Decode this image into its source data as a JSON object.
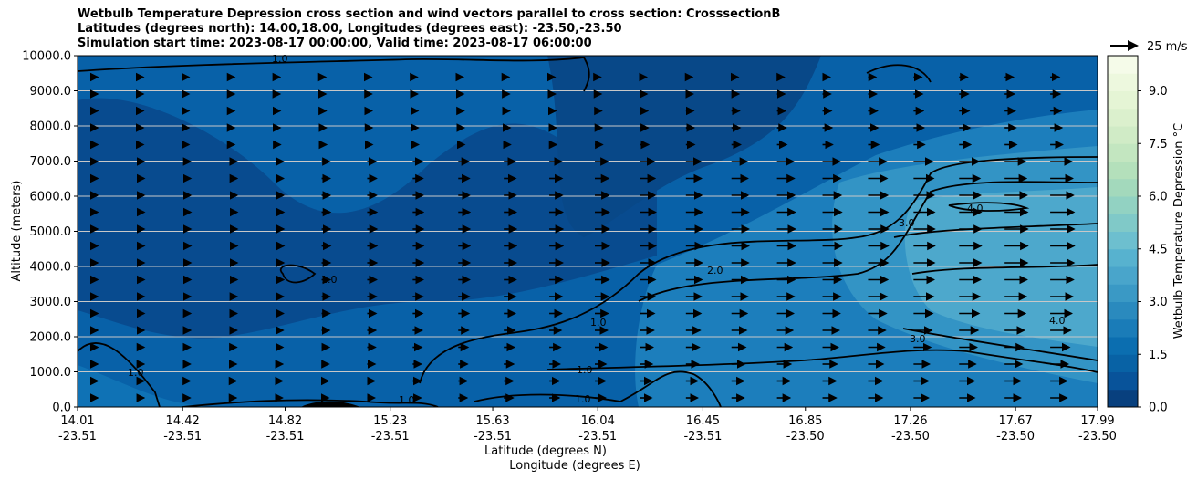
{
  "chart_data": {
    "type": "heatmap",
    "title_lines": [
      "Wetbulb Temperature Depression cross section and wind vectors parallel to cross section: CrosssectionB",
      "Latitudes (degrees north): 14.00,18.00, Longitudes (degrees east): -23.50,-23.50",
      "Simulation start time: 2023-08-17 00:00:00, Valid time: 2023-08-17 06:00:00"
    ],
    "xlabel_lines": [
      "Latitude (degrees N)",
      "Longitude (degrees E)"
    ],
    "ylabel": "Altitude (meters)",
    "x_ticks": [
      {
        "lat": "14.01",
        "lon": "-23.51",
        "pos": 14.01
      },
      {
        "lat": "14.42",
        "lon": "-23.51",
        "pos": 14.42
      },
      {
        "lat": "14.82",
        "lon": "-23.51",
        "pos": 14.82
      },
      {
        "lat": "15.23",
        "lon": "-23.51",
        "pos": 15.23
      },
      {
        "lat": "15.63",
        "lon": "-23.51",
        "pos": 15.63
      },
      {
        "lat": "16.04",
        "lon": "-23.51",
        "pos": 16.04
      },
      {
        "lat": "16.45",
        "lon": "-23.51",
        "pos": 16.45
      },
      {
        "lat": "16.85",
        "lon": "-23.50",
        "pos": 16.85
      },
      {
        "lat": "17.26",
        "lon": "-23.50",
        "pos": 17.26
      },
      {
        "lat": "17.67",
        "lon": "-23.50",
        "pos": 17.67
      },
      {
        "lat": "17.99",
        "lon": "-23.50",
        "pos": 17.99
      }
    ],
    "xlim": [
      14.01,
      17.99
    ],
    "y_ticks": [
      "0.0",
      "1000.0",
      "2000.0",
      "3000.0",
      "4000.0",
      "5000.0",
      "6000.0",
      "7000.0",
      "8000.0",
      "9000.0",
      "10000.0"
    ],
    "ylim": [
      0,
      10000
    ],
    "grid": "horizontal",
    "colorbar": {
      "label": "Wetbulb Temperature Depression °C",
      "ticks": [
        "0.0",
        "1.5",
        "3.0",
        "4.5",
        "6.0",
        "7.5",
        "9.0"
      ],
      "range": [
        0,
        10
      ],
      "levels": 20,
      "colors": [
        "#08407e",
        "#08539a",
        "#0862a5",
        "#0b6eb0",
        "#1a7cb8",
        "#2a8abe",
        "#3a99c5",
        "#49a5cb",
        "#57b2cf",
        "#6dbfcf",
        "#80c9c8",
        "#92d2c2",
        "#a3d9bc",
        "#b4e0bb",
        "#c3e6c0",
        "#d0ebc6",
        "#dbf0cd",
        "#e5f5d5",
        "#edf8de",
        "#f5fbe9"
      ]
    },
    "quiver_key": {
      "label": "25 m/s",
      "value": 25,
      "placement": "top-right"
    },
    "contour_labels": [
      "1.0",
      "2.0",
      "3.0",
      "4.0"
    ],
    "contour_levels": [
      1.0,
      2.0,
      3.0,
      4.0
    ]
  }
}
